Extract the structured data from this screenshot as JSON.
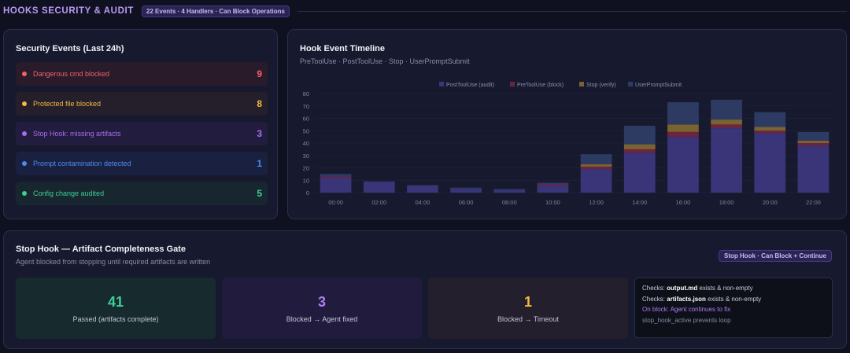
{
  "header": {
    "title": "HOOKS SECURITY & AUDIT",
    "badge": "22 Events · 4 Handlers · Can Block Operations"
  },
  "security_events": {
    "title": "Security Events (Last 24h)",
    "items": [
      {
        "label": "Dangerous cmd blocked",
        "count": "9",
        "color": "#f0616d",
        "bg": "#2a1b2a"
      },
      {
        "label": "Protected file blocked",
        "count": "8",
        "color": "#f5b843",
        "bg": "#241f2a"
      },
      {
        "label": "Stop Hook: missing artifacts",
        "count": "3",
        "color": "#a66cf0",
        "bg": "#221d3e"
      },
      {
        "label": "Prompt contamination detected",
        "count": "1",
        "color": "#4c8bf0",
        "bg": "#1a2040"
      },
      {
        "label": "Config change audited",
        "count": "5",
        "color": "#3ecf96",
        "bg": "#182630"
      }
    ]
  },
  "timeline": {
    "title": "Hook Event Timeline",
    "subtitle": "PreToolUse · PostToolUse · Stop · UserPromptSubmit"
  },
  "chart_data": {
    "type": "bar",
    "stacked": true,
    "categories": [
      "00:00",
      "02:00",
      "04:00",
      "06:00",
      "08:00",
      "10:00",
      "12:00",
      "14:00",
      "16:00",
      "18:00",
      "20:00",
      "22:00"
    ],
    "series": [
      {
        "name": "PostToolUse (audit)",
        "color": "#3a3478",
        "values": [
          12,
          9,
          6,
          3,
          2,
          6,
          19,
          32,
          45,
          52,
          48,
          38
        ]
      },
      {
        "name": "PreToolUse (block)",
        "color": "#6b2540",
        "values": [
          1,
          0,
          0,
          0,
          0,
          1,
          2,
          3,
          4,
          3,
          2,
          2
        ]
      },
      {
        "name": "Stop (verify)",
        "color": "#7a6330",
        "values": [
          0,
          0,
          0,
          0,
          0,
          0,
          2,
          4,
          6,
          4,
          3,
          2
        ]
      },
      {
        "name": "UserPromptSubmit",
        "color": "#2d3b63",
        "values": [
          2,
          0,
          0,
          1,
          1,
          1,
          8,
          15,
          18,
          16,
          12,
          7
        ]
      }
    ],
    "ylim": [
      0,
      80
    ],
    "yticks": [
      0,
      10,
      20,
      30,
      40,
      50,
      60,
      70,
      80
    ],
    "legend_position": "top"
  },
  "stop_hook": {
    "title": "Stop Hook — Artifact Completeness Gate",
    "subtitle": "Agent blocked from stopping until required artifacts are written",
    "badge": "Stop Hook · Can Block + Continue",
    "stats": [
      {
        "value": "41",
        "label": "Passed (artifacts complete)",
        "color": "#3ecf96",
        "bg": "#172a2e"
      },
      {
        "value": "3",
        "label": "Blocked → Agent fixed",
        "color": "#b07cf5",
        "bg": "#211c3e"
      },
      {
        "value": "1",
        "label": "Blocked → Timeout",
        "color": "#f5b843",
        "bg": "#231f2c"
      }
    ],
    "checks": {
      "line1_prefix": "Checks: ",
      "line1_file": "output.md",
      "line1_suffix": " exists & non-empty",
      "line2_prefix": "Checks: ",
      "line2_file": "artifacts.json",
      "line2_suffix": " exists & non-empty",
      "line3": "On block: Agent continues to fix",
      "line4": "stop_hook_active prevents loop"
    }
  }
}
